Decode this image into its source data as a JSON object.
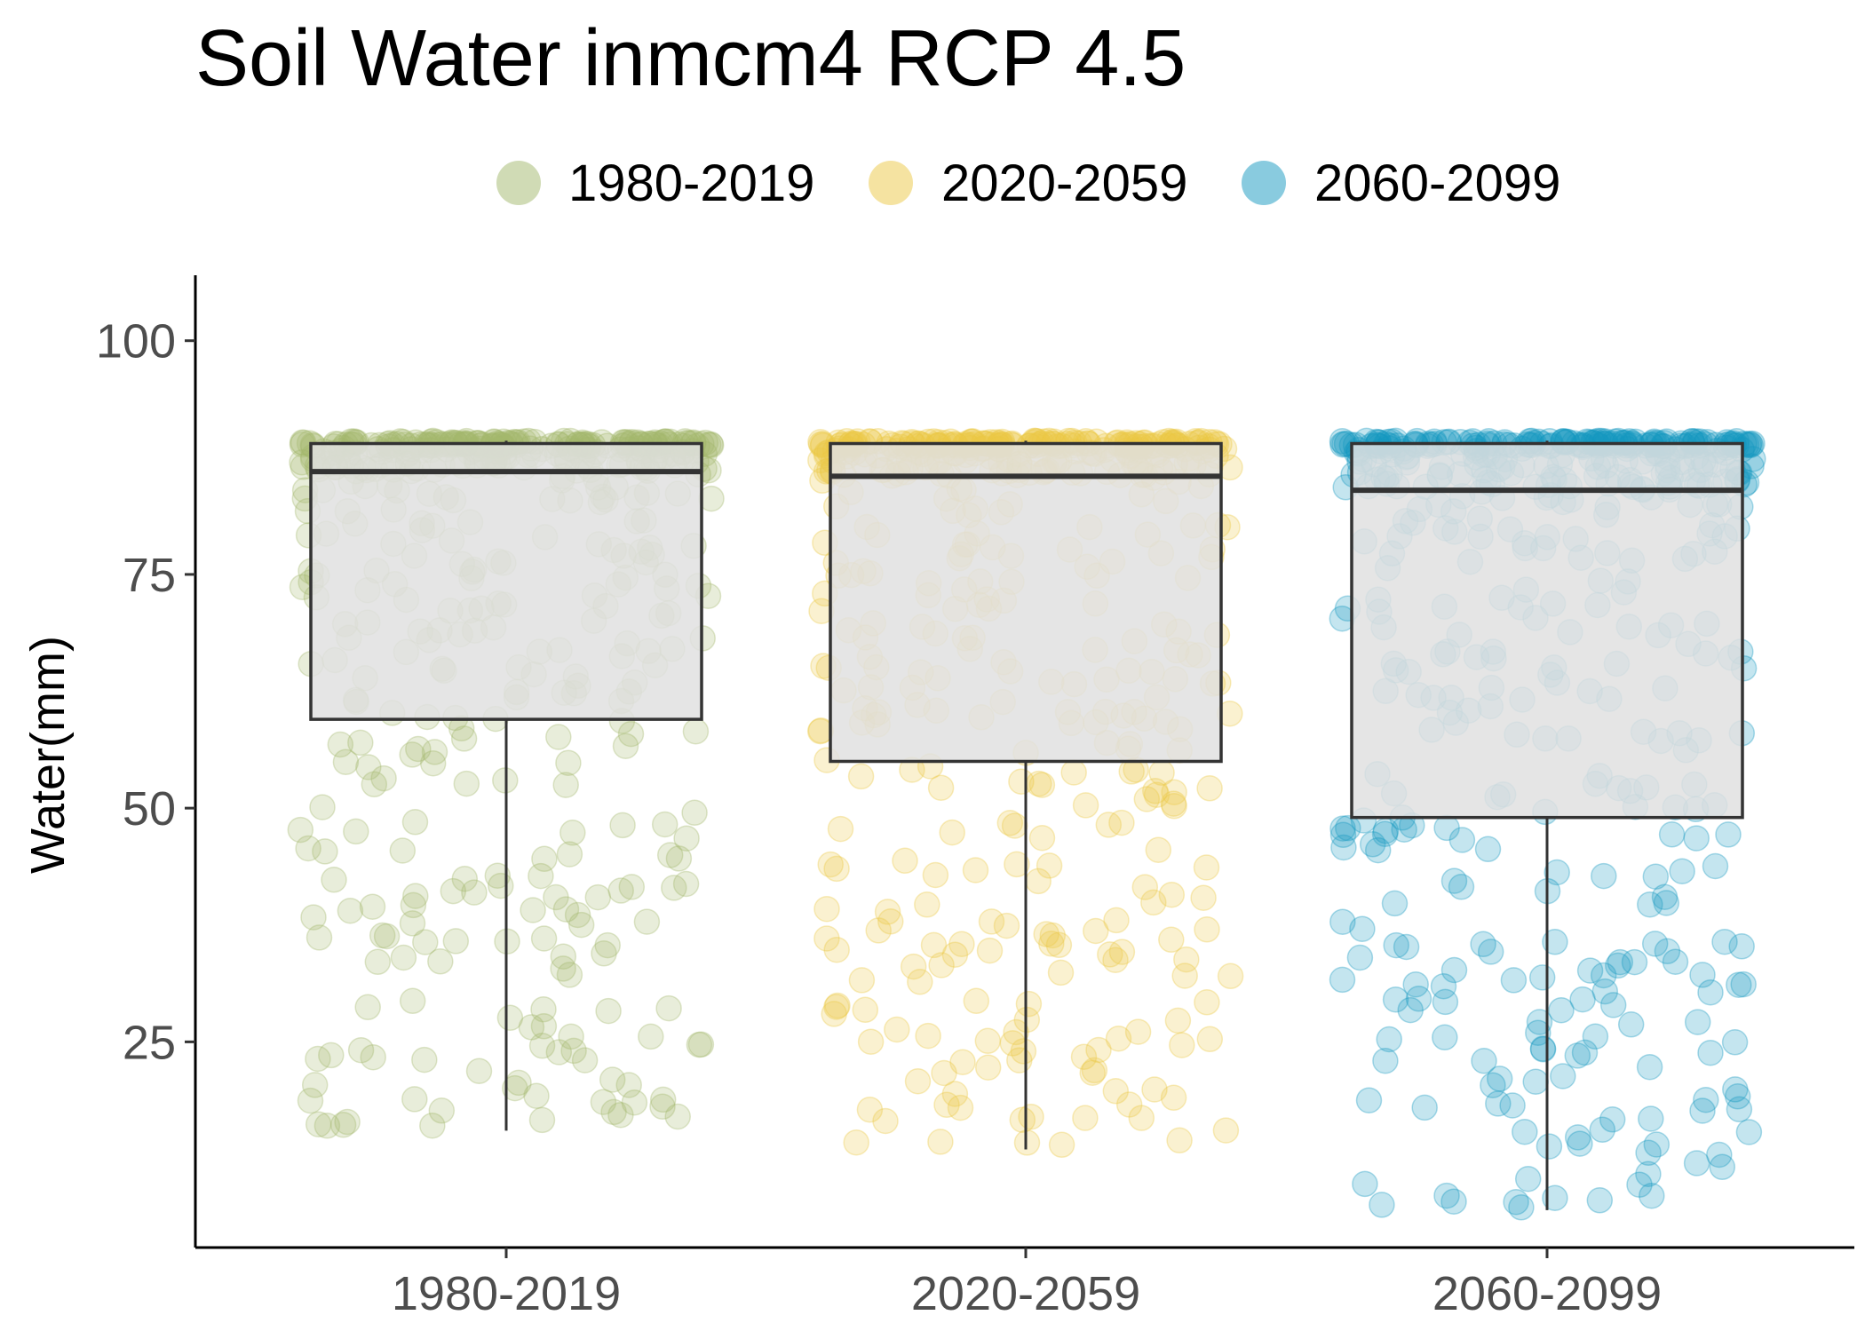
{
  "chart_data": {
    "type": "box",
    "title": "Soil Water inmcm4 RCP 4.5",
    "xlabel": "",
    "ylabel": "Water(mm)",
    "ylim": [
      3,
      107
    ],
    "yticks": [
      25,
      50,
      75,
      100
    ],
    "legend_position": "top",
    "grid": false,
    "categories": [
      "1980-2019",
      "2020-2059",
      "2060-2099"
    ],
    "colors": [
      "#a2b86c",
      "#ebc844",
      "#1497c0"
    ],
    "box_fill": "#e0e0e0",
    "box_stroke": "#333333",
    "series": [
      {
        "name": "1980-2019",
        "min": 15.5,
        "q1": 59.5,
        "median": 86,
        "q3": 89,
        "max": 89.3,
        "approx_point_count": 480
      },
      {
        "name": "2020-2059",
        "min": 13.5,
        "q1": 55,
        "median": 85.5,
        "q3": 89,
        "max": 89.3,
        "approx_point_count": 480
      },
      {
        "name": "2060-2099",
        "min": 7,
        "q1": 49,
        "median": 84,
        "q3": 89,
        "max": 89.3,
        "approx_point_count": 480
      }
    ]
  }
}
